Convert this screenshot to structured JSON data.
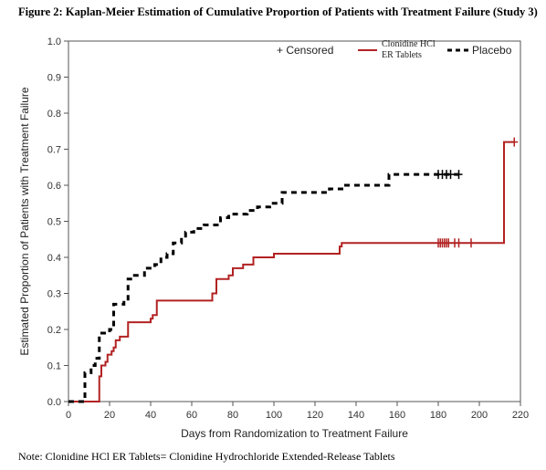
{
  "figure": {
    "title": "Figure 2: Kaplan-Meier Estimation of Cumulative Proportion of Patients with Treatment Failure (Study 3)",
    "note": "Note: Clonidine HCl ER Tablets= Clonidine Hydrochloride Extended-Release Tablets"
  },
  "chart_data": {
    "type": "line",
    "step": true,
    "xlabel": "Days from Randomization to Treatment Failure",
    "ylabel": "Estimated Proportion of Patients with Treatment Failure",
    "xlim": [
      0,
      220
    ],
    "ylim": [
      0,
      1.0
    ],
    "xticks": [
      0,
      20,
      40,
      60,
      80,
      100,
      120,
      140,
      160,
      180,
      200,
      220
    ],
    "yticks": [
      0.0,
      0.1,
      0.2,
      0.3,
      0.4,
      0.5,
      0.6,
      0.7,
      0.8,
      0.9,
      1.0
    ],
    "xtick_labels": [
      "0",
      "20",
      "40",
      "60",
      "80",
      "100",
      "120",
      "140",
      "160",
      "180",
      "200",
      "220"
    ],
    "ytick_labels": [
      "0.0",
      "0.1",
      "0.2",
      "0.3",
      "0.4",
      "0.5",
      "0.6",
      "0.7",
      "0.8",
      "0.9",
      "1.0"
    ],
    "legend_position": "top-right",
    "censored_label": "+ Censored",
    "series": [
      {
        "name": "Clonidine HCl ER Tablets",
        "name_lines": [
          "Clonidine HCl",
          "ER Tablets"
        ],
        "color": "#b22222",
        "style": "solid",
        "points": [
          [
            0,
            0
          ],
          [
            15,
            0.07
          ],
          [
            16,
            0.1
          ],
          [
            18,
            0.11
          ],
          [
            19,
            0.13
          ],
          [
            21,
            0.14
          ],
          [
            22,
            0.15
          ],
          [
            23,
            0.17
          ],
          [
            25,
            0.18
          ],
          [
            29,
            0.22
          ],
          [
            40,
            0.23
          ],
          [
            41,
            0.24
          ],
          [
            43,
            0.28
          ],
          [
            70,
            0.3
          ],
          [
            72,
            0.34
          ],
          [
            78,
            0.35
          ],
          [
            80,
            0.37
          ],
          [
            85,
            0.38
          ],
          [
            90,
            0.4
          ],
          [
            100,
            0.41
          ],
          [
            132,
            0.43
          ],
          [
            133,
            0.44
          ],
          [
            212,
            0.72
          ],
          [
            217,
            0.72
          ]
        ],
        "censored": [
          180,
          181,
          182,
          183,
          184,
          185,
          188,
          190,
          196,
          217
        ]
      },
      {
        "name": "Placebo",
        "name_lines": [
          "Placebo"
        ],
        "color": "#000000",
        "style": "dashed",
        "points": [
          [
            0,
            0
          ],
          [
            8,
            0.08
          ],
          [
            11,
            0.1
          ],
          [
            13,
            0.12
          ],
          [
            15,
            0.19
          ],
          [
            20,
            0.2
          ],
          [
            22,
            0.27
          ],
          [
            27,
            0.28
          ],
          [
            29,
            0.34
          ],
          [
            31,
            0.35
          ],
          [
            37,
            0.37
          ],
          [
            42,
            0.38
          ],
          [
            45,
            0.4
          ],
          [
            48,
            0.41
          ],
          [
            51,
            0.44
          ],
          [
            55,
            0.45
          ],
          [
            57,
            0.47
          ],
          [
            61,
            0.48
          ],
          [
            66,
            0.49
          ],
          [
            74,
            0.51
          ],
          [
            78,
            0.52
          ],
          [
            87,
            0.53
          ],
          [
            92,
            0.54
          ],
          [
            98,
            0.55
          ],
          [
            104,
            0.58
          ],
          [
            112,
            0.58
          ],
          [
            127,
            0.59
          ],
          [
            134,
            0.6
          ],
          [
            146,
            0.6
          ],
          [
            156,
            0.63
          ],
          [
            190,
            0.63
          ]
        ],
        "censored": [
          180,
          182,
          184,
          186,
          190
        ]
      }
    ]
  }
}
